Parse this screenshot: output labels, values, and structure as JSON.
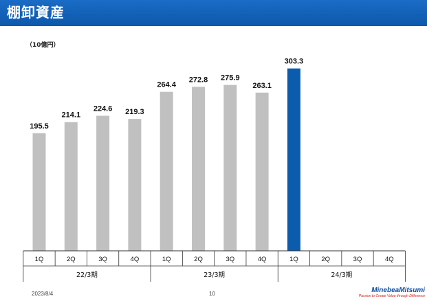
{
  "header": {
    "title": "棚卸資産"
  },
  "unit_label": "（10億円）",
  "chart_data": {
    "type": "bar",
    "title": "棚卸資産",
    "ylabel": "（10億円）",
    "ylim": [
      0,
      320
    ],
    "grid": false,
    "categories": [
      "1Q",
      "2Q",
      "3Q",
      "4Q",
      "1Q",
      "2Q",
      "3Q",
      "4Q",
      "1Q",
      "2Q",
      "3Q",
      "4Q"
    ],
    "groups": [
      {
        "label": "22/3期",
        "quarters": [
          "1Q",
          "2Q",
          "3Q",
          "4Q"
        ]
      },
      {
        "label": "23/3期",
        "quarters": [
          "1Q",
          "2Q",
          "3Q",
          "4Q"
        ]
      },
      {
        "label": "24/3期",
        "quarters": [
          "1Q",
          "2Q",
          "3Q",
          "4Q"
        ]
      }
    ],
    "values": [
      195.5,
      214.1,
      224.6,
      219.3,
      264.4,
      272.8,
      275.9,
      263.1,
      303.3,
      null,
      null,
      null
    ],
    "value_labels": [
      "195.5",
      "214.1",
      "224.6",
      "219.3",
      "264.4",
      "272.8",
      "275.9",
      "263.1",
      "303.3",
      "",
      "",
      ""
    ],
    "colors": {
      "past": "#c0c0c0",
      "current": "#0b5cad"
    },
    "highlight_index": 8
  },
  "footer": {
    "date": "2023/8/4",
    "page": "10"
  },
  "logo": {
    "name": "MinebeaMitsumi",
    "tagline": "Passion to Create Value through Difference"
  }
}
